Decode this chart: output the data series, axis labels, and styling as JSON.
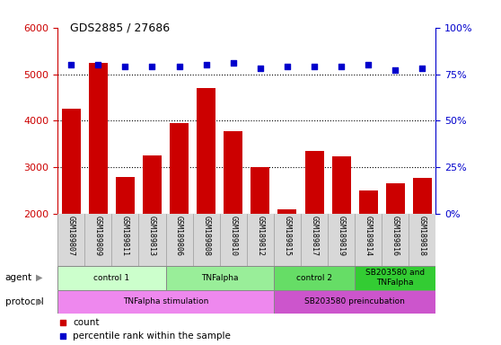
{
  "title": "GDS2885 / 27686",
  "samples": [
    "GSM189807",
    "GSM189809",
    "GSM189811",
    "GSM189813",
    "GSM189806",
    "GSM189808",
    "GSM189810",
    "GSM189812",
    "GSM189815",
    "GSM189817",
    "GSM189819",
    "GSM189814",
    "GSM189816",
    "GSM189818"
  ],
  "counts": [
    4250,
    5250,
    2800,
    3250,
    3950,
    4700,
    3780,
    3000,
    2100,
    3350,
    3230,
    2500,
    2660,
    2780
  ],
  "percentile_ranks": [
    80,
    80,
    79,
    79,
    79,
    80,
    81,
    78,
    79,
    79,
    79,
    80,
    77,
    78
  ],
  "bar_color": "#cc0000",
  "dot_color": "#0000cc",
  "ylim_left": [
    2000,
    6000
  ],
  "ylim_right": [
    0,
    100
  ],
  "yticks_left": [
    2000,
    3000,
    4000,
    5000,
    6000
  ],
  "yticks_right": [
    0,
    25,
    50,
    75,
    100
  ],
  "agent_groups": [
    {
      "label": "control 1",
      "start": 0,
      "end": 4,
      "color": "#ccffcc"
    },
    {
      "label": "TNFalpha",
      "start": 4,
      "end": 8,
      "color": "#99ee99"
    },
    {
      "label": "control 2",
      "start": 8,
      "end": 11,
      "color": "#66dd66"
    },
    {
      "label": "SB203580 and\nTNFalpha",
      "start": 11,
      "end": 14,
      "color": "#33cc33"
    }
  ],
  "protocol_groups": [
    {
      "label": "TNFalpha stimulation",
      "start": 0,
      "end": 8,
      "color": "#ee88ee"
    },
    {
      "label": "SB203580 preincubation",
      "start": 8,
      "end": 14,
      "color": "#cc55cc"
    }
  ],
  "left_axis_color": "#cc0000",
  "right_axis_color": "#0000cc",
  "sample_bg_color": "#d8d8d8",
  "fig_width": 5.58,
  "fig_height": 3.84,
  "dpi": 100
}
